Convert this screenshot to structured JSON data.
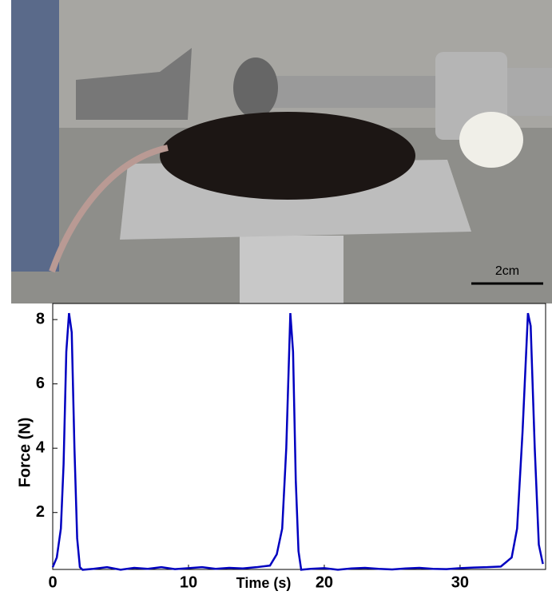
{
  "photo": {
    "scale_label": "2cm"
  },
  "chart_data": {
    "type": "line",
    "xlabel": "Time (s)",
    "ylabel": "Force (N)",
    "xlim": [
      0,
      36.3
    ],
    "ylim": [
      0.23,
      8.5
    ],
    "xticks": [
      0,
      10,
      20,
      30
    ],
    "yticks": [
      2,
      4,
      6,
      8
    ],
    "x": [
      0,
      0.3,
      0.6,
      0.8,
      1.0,
      1.2,
      1.4,
      1.6,
      1.8,
      2.0,
      2.2,
      3,
      4,
      5,
      6,
      7,
      8,
      9,
      10,
      11,
      12,
      13,
      14,
      15,
      16,
      16.5,
      16.9,
      17.2,
      17.5,
      17.7,
      17.9,
      18.1,
      18.3,
      19,
      20,
      21,
      22,
      23,
      24,
      25,
      26,
      27,
      28,
      29,
      30,
      31,
      32,
      33,
      33.8,
      34.2,
      34.6,
      35.0,
      35.2,
      35.5,
      35.8,
      36.1
    ],
    "series": [
      {
        "color": "#0000c0",
        "values": [
          0.3,
          0.6,
          1.5,
          3.5,
          7.0,
          8.2,
          7.6,
          4.0,
          1.2,
          0.3,
          0.22,
          0.25,
          0.3,
          0.22,
          0.28,
          0.25,
          0.3,
          0.24,
          0.27,
          0.3,
          0.25,
          0.28,
          0.26,
          0.3,
          0.35,
          0.7,
          1.5,
          4.0,
          8.2,
          7.0,
          3.0,
          0.8,
          0.22,
          0.25,
          0.27,
          0.22,
          0.26,
          0.28,
          0.25,
          0.23,
          0.26,
          0.28,
          0.25,
          0.24,
          0.27,
          0.29,
          0.3,
          0.32,
          0.6,
          1.5,
          4.5,
          8.2,
          7.8,
          4.0,
          1.0,
          0.4
        ]
      }
    ]
  }
}
